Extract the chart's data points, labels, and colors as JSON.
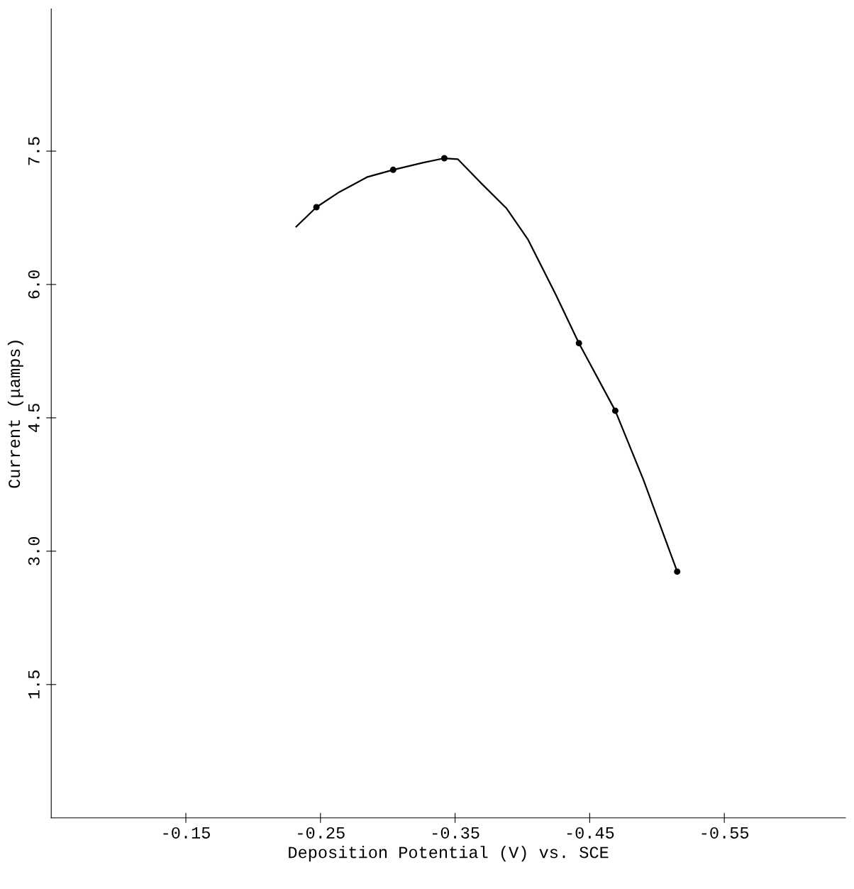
{
  "chart_data": {
    "type": "line",
    "xlabel": "Deposition Potential (V) vs. SCE",
    "ylabel": "Current (μamps)",
    "xlim": [
      -0.05,
      -0.64
    ],
    "ylim": [
      0,
      9.1
    ],
    "xticks": [
      -0.15,
      -0.25,
      -0.35,
      -0.45,
      -0.55
    ],
    "yticks": [
      1.5,
      {
        "value": 3,
        "label": "3.0"
      },
      4.5,
      {
        "value": 6,
        "label": "6.0"
      },
      7.5
    ],
    "grid": false,
    "legend": false,
    "series": [
      {
        "color": "#000000",
        "marker": "none",
        "line_style": "solid",
        "x": [
          -0.232,
          -0.247,
          -0.264,
          -0.285,
          -0.304,
          -0.326,
          -0.342,
          -0.352,
          -0.37,
          -0.388,
          -0.404,
          -0.425,
          -0.442,
          -0.469,
          -0.49,
          -0.515
        ],
        "values": [
          6.65,
          6.87,
          7.04,
          7.21,
          7.29,
          7.37,
          7.42,
          7.41,
          7.13,
          6.86,
          6.51,
          5.88,
          5.34,
          4.58,
          3.8,
          2.77
        ]
      },
      {
        "type": "scatter",
        "color": "#000000",
        "marker": "circle",
        "x": [
          -0.247,
          -0.304,
          -0.342,
          -0.442,
          -0.469,
          -0.515
        ],
        "values": [
          6.87,
          7.29,
          7.42,
          5.34,
          4.58,
          2.77
        ]
      }
    ]
  }
}
